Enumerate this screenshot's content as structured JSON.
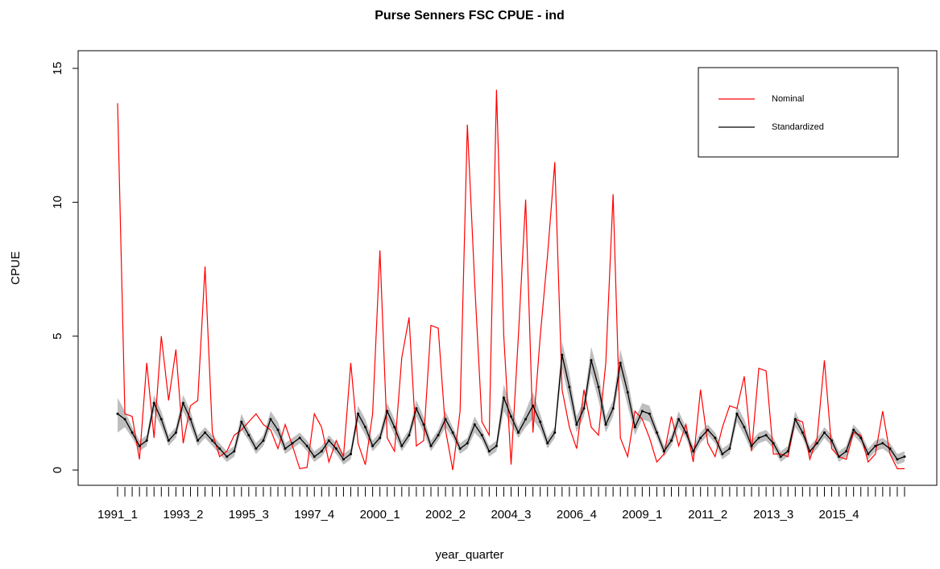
{
  "chart_data": {
    "type": "line",
    "title": "Purse Senners FSC CPUE - ind",
    "x_label": "year_quarter",
    "y_label": "CPUE",
    "categories": [
      "1991_1",
      null,
      null,
      null,
      null,
      null,
      null,
      null,
      null,
      "1993_2",
      null,
      null,
      null,
      null,
      null,
      null,
      null,
      null,
      "1995_3",
      null,
      null,
      null,
      null,
      null,
      null,
      null,
      null,
      "1997_4",
      null,
      null,
      null,
      null,
      null,
      null,
      null,
      null,
      "2000_1",
      null,
      null,
      null,
      null,
      null,
      null,
      null,
      null,
      "2002_2",
      null,
      null,
      null,
      null,
      null,
      null,
      null,
      null,
      "2004_3",
      null,
      null,
      null,
      null,
      null,
      null,
      null,
      null,
      "2006_4",
      null,
      null,
      null,
      null,
      null,
      null,
      null,
      null,
      "2009_1",
      null,
      null,
      null,
      null,
      null,
      null,
      null,
      null,
      "2011_2",
      null,
      null,
      null,
      null,
      null,
      null,
      null,
      null,
      "2013_3",
      null,
      null,
      null,
      null,
      null,
      null,
      null,
      null,
      "2015_4",
      null,
      null,
      null,
      null,
      null,
      null,
      null,
      null,
      null
    ],
    "series": [
      {
        "name": "Nominal",
        "color": "#ff0000",
        "values": [
          13.7,
          2.1,
          2.0,
          0.4,
          4.0,
          1.2,
          5.0,
          2.6,
          4.5,
          1.0,
          2.4,
          2.6,
          7.6,
          1.4,
          0.5,
          0.7,
          1.3,
          1.5,
          1.8,
          2.1,
          1.7,
          1.5,
          0.8,
          1.7,
          0.9,
          0.05,
          0.1,
          2.1,
          1.6,
          0.3,
          1.1,
          0.5,
          4.0,
          1.0,
          0.2,
          2.1,
          8.2,
          1.2,
          0.7,
          4.2,
          5.7,
          0.9,
          1.1,
          5.4,
          5.3,
          1.5,
          0.0,
          2.2,
          12.9,
          7.0,
          1.8,
          1.3,
          14.2,
          5.0,
          0.2,
          5.0,
          10.1,
          1.4,
          5.0,
          8.0,
          11.5,
          3.0,
          1.6,
          0.8,
          3.0,
          1.6,
          1.3,
          4.0,
          10.3,
          1.2,
          0.5,
          2.2,
          1.9,
          1.2,
          0.3,
          0.6,
          2.0,
          0.9,
          1.7,
          0.3,
          3.0,
          1.0,
          0.5,
          1.6,
          2.4,
          2.3,
          3.5,
          0.7,
          3.8,
          3.7,
          0.6,
          0.6,
          0.5,
          1.9,
          1.8,
          0.4,
          1.2,
          4.1,
          0.8,
          0.5,
          0.4,
          1.4,
          1.3,
          0.3,
          0.6,
          2.2,
          0.6,
          0.05,
          0.05
        ]
      },
      {
        "name": "Standardized",
        "color": "#000000",
        "values": [
          2.1,
          1.9,
          1.4,
          0.9,
          1.1,
          2.5,
          1.9,
          1.1,
          1.4,
          2.5,
          1.9,
          1.1,
          1.4,
          1.1,
          0.8,
          0.5,
          0.7,
          1.8,
          1.3,
          0.8,
          1.1,
          1.9,
          1.5,
          0.8,
          1.0,
          1.2,
          0.9,
          0.5,
          0.7,
          1.1,
          0.8,
          0.4,
          0.6,
          2.1,
          1.6,
          0.9,
          1.2,
          2.2,
          1.6,
          0.9,
          1.3,
          2.3,
          1.7,
          0.9,
          1.3,
          1.9,
          1.4,
          0.8,
          1.0,
          1.7,
          1.3,
          0.7,
          0.9,
          2.7,
          2.0,
          1.4,
          1.9,
          2.4,
          1.8,
          1.0,
          1.4,
          4.3,
          3.1,
          1.7,
          2.3,
          4.1,
          3.1,
          1.7,
          2.3,
          4.0,
          2.9,
          1.6,
          2.2,
          2.1,
          1.4,
          0.7,
          1.1,
          1.9,
          1.4,
          0.7,
          1.2,
          1.5,
          1.2,
          0.6,
          0.8,
          2.1,
          1.6,
          0.9,
          1.2,
          1.3,
          1.0,
          0.5,
          0.7,
          1.9,
          1.4,
          0.7,
          1.0,
          1.4,
          1.1,
          0.5,
          0.7,
          1.5,
          1.2,
          0.6,
          0.9,
          1.0,
          0.8,
          0.4,
          0.5
        ]
      }
    ],
    "band": {
      "color": "#bebebe",
      "upper": [
        2.7,
        2.2,
        1.6,
        1.1,
        1.3,
        2.8,
        2.2,
        1.3,
        1.6,
        2.8,
        2.2,
        1.3,
        1.6,
        1.3,
        1.0,
        0.7,
        0.9,
        2.1,
        1.5,
        1.0,
        1.3,
        2.2,
        1.8,
        1.0,
        1.2,
        1.4,
        1.1,
        0.7,
        0.9,
        1.3,
        1.0,
        0.6,
        0.8,
        2.4,
        1.9,
        1.1,
        1.4,
        2.5,
        1.9,
        1.1,
        1.5,
        2.6,
        2.0,
        1.1,
        1.5,
        2.2,
        1.6,
        1.0,
        1.2,
        2.0,
        1.5,
        0.9,
        1.1,
        3.2,
        2.3,
        1.6,
        2.2,
        2.9,
        2.1,
        1.2,
        1.6,
        4.8,
        3.6,
        2.0,
        2.6,
        4.6,
        3.6,
        2.0,
        2.6,
        4.5,
        3.4,
        1.9,
        2.5,
        2.4,
        1.6,
        0.9,
        1.3,
        2.2,
        1.6,
        0.9,
        1.4,
        1.7,
        1.4,
        0.8,
        1.0,
        2.4,
        1.9,
        1.1,
        1.4,
        1.5,
        1.2,
        0.7,
        0.9,
        2.2,
        1.6,
        0.9,
        1.2,
        1.6,
        1.3,
        0.7,
        0.9,
        1.7,
        1.4,
        0.8,
        1.1,
        1.2,
        1.0,
        0.6,
        0.7
      ],
      "lower": [
        1.4,
        1.6,
        1.2,
        0.7,
        0.9,
        2.2,
        1.6,
        0.9,
        1.2,
        2.2,
        1.6,
        0.9,
        1.2,
        0.9,
        0.6,
        0.3,
        0.5,
        1.5,
        1.1,
        0.6,
        0.9,
        1.6,
        1.2,
        0.6,
        0.8,
        1.0,
        0.7,
        0.3,
        0.5,
        0.9,
        0.6,
        0.2,
        0.4,
        1.8,
        1.3,
        0.7,
        1.0,
        1.9,
        1.3,
        0.7,
        1.1,
        2.0,
        1.4,
        0.7,
        1.1,
        1.6,
        1.2,
        0.6,
        0.8,
        1.4,
        1.1,
        0.5,
        0.7,
        2.2,
        1.7,
        1.2,
        1.6,
        1.9,
        1.5,
        0.8,
        1.2,
        3.8,
        2.6,
        1.4,
        2.0,
        3.6,
        2.6,
        1.4,
        2.0,
        3.5,
        2.4,
        1.3,
        1.9,
        1.8,
        1.2,
        0.5,
        0.9,
        1.6,
        1.2,
        0.5,
        1.0,
        1.3,
        1.0,
        0.4,
        0.6,
        1.8,
        1.3,
        0.7,
        1.0,
        1.1,
        0.8,
        0.3,
        0.5,
        1.6,
        1.2,
        0.5,
        0.8,
        1.2,
        0.9,
        0.3,
        0.5,
        1.3,
        1.0,
        0.4,
        0.7,
        0.8,
        0.6,
        0.2,
        0.3
      ]
    },
    "ylim": [
      -0.57,
      15.66
    ],
    "yticks": [
      0,
      5,
      10,
      15
    ],
    "legend": "topright"
  }
}
